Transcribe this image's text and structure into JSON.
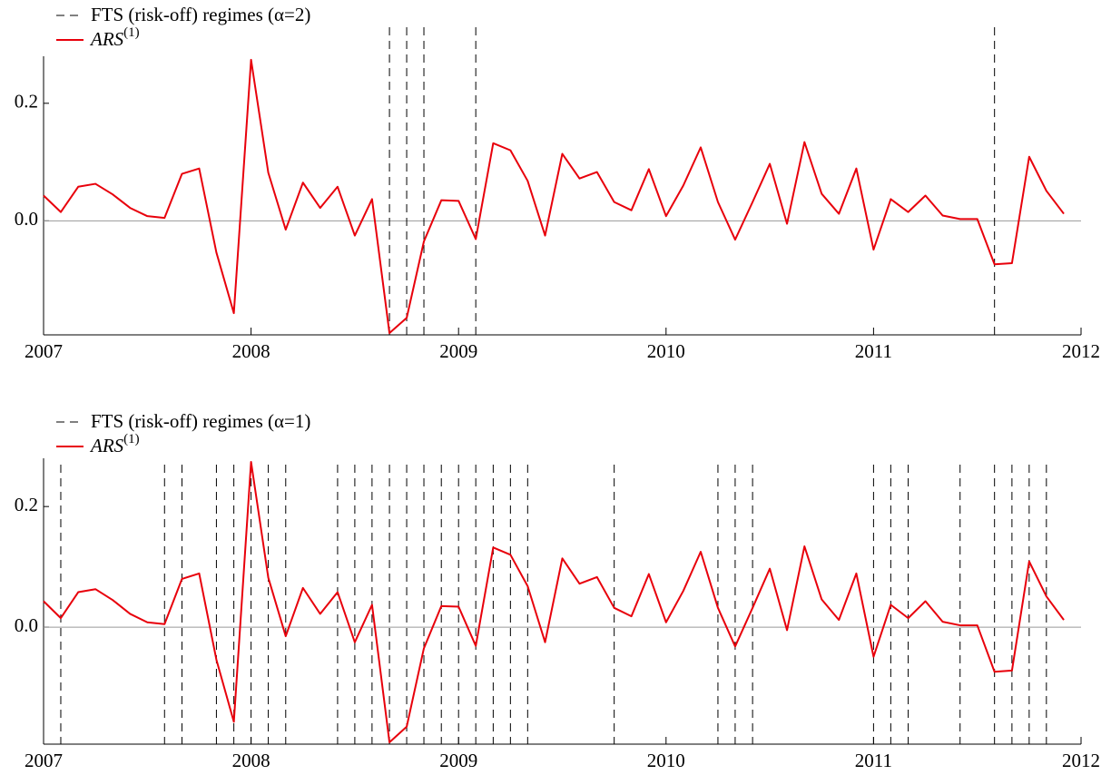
{
  "chart_data": [
    {
      "type": "line",
      "x": [
        2007,
        2007.083,
        2007.167,
        2007.25,
        2007.333,
        2007.417,
        2007.5,
        2007.583,
        2007.667,
        2007.75,
        2007.833,
        2007.917,
        2008,
        2008.083,
        2008.167,
        2008.25,
        2008.333,
        2008.417,
        2008.5,
        2008.583,
        2008.667,
        2008.75,
        2008.833,
        2008.917,
        2009,
        2009.083,
        2009.167,
        2009.25,
        2009.333,
        2009.417,
        2009.5,
        2009.583,
        2009.667,
        2009.75,
        2009.833,
        2009.917,
        2010,
        2010.083,
        2010.167,
        2010.25,
        2010.333,
        2010.417,
        2010.5,
        2010.583,
        2010.667,
        2010.75,
        2010.833,
        2010.917,
        2011,
        2011.083,
        2011.167,
        2011.25,
        2011.333,
        2011.417,
        2011.5,
        2011.583,
        2011.667,
        2011.75,
        2011.833,
        2011.917
      ],
      "series": [
        {
          "name": "ARS",
          "name_sup": "(1)",
          "color": "#e8000b",
          "values": [
            0.043,
            0.015,
            0.058,
            0.063,
            0.045,
            0.022,
            0.008,
            0.005,
            0.08,
            0.089,
            -0.054,
            -0.157,
            0.274,
            0.082,
            -0.015,
            0.065,
            0.022,
            0.058,
            -0.025,
            0.037,
            -0.191,
            -0.165,
            -0.035,
            0.035,
            0.034,
            -0.031,
            0.132,
            0.12,
            0.068,
            -0.025,
            0.114,
            0.072,
            0.083,
            0.032,
            0.018,
            0.088,
            0.008,
            0.06,
            0.125,
            0.032,
            -0.032,
            0.032,
            0.097,
            -0.005,
            0.134,
            0.046,
            0.012,
            0.089,
            -0.049,
            0.037,
            0.015,
            0.043,
            0.009,
            0.003,
            0.003,
            -0.074,
            -0.072,
            0.109,
            0.051,
            0.012
          ]
        }
      ],
      "regimes": {
        "name": "FTS (risk-off) regimes (α=2)",
        "color": "#000000",
        "style": "dashed",
        "x": [
          2008.667,
          2008.75,
          2008.833,
          2009.083,
          2011.583
        ]
      },
      "xlim": [
        2007,
        2012
      ],
      "xticks": [
        2007,
        2008,
        2009,
        2010,
        2011,
        2012
      ],
      "ylim": [
        -0.194,
        0.28
      ],
      "yticks": [
        {
          "value": 0,
          "label": "0.0"
        },
        {
          "value": 0.2,
          "label": "0.2"
        }
      ],
      "zero_line": true
    },
    {
      "type": "line",
      "x": [
        2007,
        2007.083,
        2007.167,
        2007.25,
        2007.333,
        2007.417,
        2007.5,
        2007.583,
        2007.667,
        2007.75,
        2007.833,
        2007.917,
        2008,
        2008.083,
        2008.167,
        2008.25,
        2008.333,
        2008.417,
        2008.5,
        2008.583,
        2008.667,
        2008.75,
        2008.833,
        2008.917,
        2009,
        2009.083,
        2009.167,
        2009.25,
        2009.333,
        2009.417,
        2009.5,
        2009.583,
        2009.667,
        2009.75,
        2009.833,
        2009.917,
        2010,
        2010.083,
        2010.167,
        2010.25,
        2010.333,
        2010.417,
        2010.5,
        2010.583,
        2010.667,
        2010.75,
        2010.833,
        2010.917,
        2011,
        2011.083,
        2011.167,
        2011.25,
        2011.333,
        2011.417,
        2011.5,
        2011.583,
        2011.667,
        2011.75,
        2011.833,
        2011.917
      ],
      "series": [
        {
          "name": "ARS",
          "name_sup": "(1)",
          "color": "#e8000b",
          "values": [
            0.043,
            0.015,
            0.058,
            0.063,
            0.045,
            0.022,
            0.008,
            0.005,
            0.08,
            0.089,
            -0.054,
            -0.157,
            0.274,
            0.082,
            -0.015,
            0.065,
            0.022,
            0.058,
            -0.025,
            0.037,
            -0.191,
            -0.165,
            -0.035,
            0.035,
            0.034,
            -0.031,
            0.132,
            0.12,
            0.068,
            -0.025,
            0.114,
            0.072,
            0.083,
            0.032,
            0.018,
            0.088,
            0.008,
            0.06,
            0.125,
            0.032,
            -0.032,
            0.032,
            0.097,
            -0.005,
            0.134,
            0.046,
            0.012,
            0.089,
            -0.049,
            0.037,
            0.015,
            0.043,
            0.009,
            0.003,
            0.003,
            -0.074,
            -0.072,
            0.109,
            0.051,
            0.012
          ]
        }
      ],
      "regimes": {
        "name": "FTS (risk-off) regimes (α=1)",
        "color": "#000000",
        "style": "dashed",
        "x": [
          2007.083,
          2007.583,
          2007.667,
          2007.833,
          2007.917,
          2008,
          2008.083,
          2008.167,
          2008.417,
          2008.5,
          2008.583,
          2008.667,
          2008.75,
          2008.833,
          2008.917,
          2009,
          2009.083,
          2009.167,
          2009.25,
          2009.333,
          2009.75,
          2010.25,
          2010.333,
          2010.417,
          2011,
          2011.083,
          2011.167,
          2011.417,
          2011.583,
          2011.667,
          2011.75,
          2011.833
        ]
      },
      "xlim": [
        2007,
        2012
      ],
      "xticks": [
        2007,
        2008,
        2009,
        2010,
        2011,
        2012
      ],
      "ylim": [
        -0.194,
        0.28
      ],
      "yticks": [
        {
          "value": 0,
          "label": "0.0"
        },
        {
          "value": 0.2,
          "label": "0.2"
        }
      ],
      "zero_line": true
    }
  ]
}
